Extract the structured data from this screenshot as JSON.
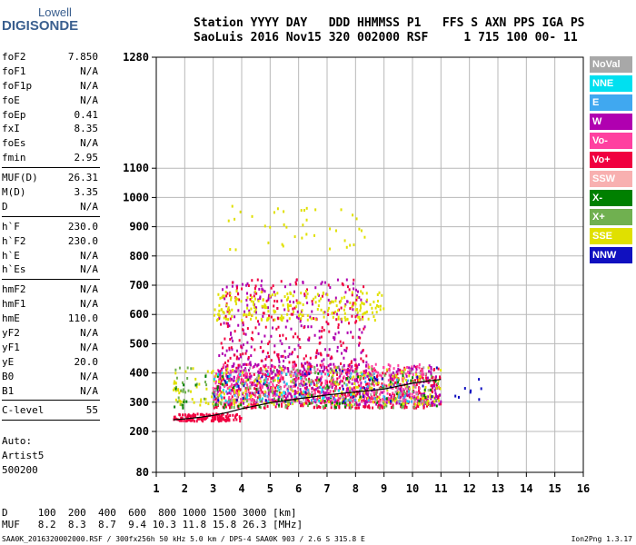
{
  "logo": {
    "line1": "Lowell",
    "line2": "DIGISONDE"
  },
  "header": {
    "labels": "Station YYYY DAY   DDD HHMMSS P1   FFS S AXN PPS IGA PS",
    "values": "SaoLuis 2016 Nov15 320 002000 RSF     1 715 100 00- 11"
  },
  "params": {
    "group1": [
      {
        "name": "foF2",
        "value": "7.850"
      },
      {
        "name": "foF1",
        "value": "N/A"
      },
      {
        "name": "foF1p",
        "value": "N/A"
      },
      {
        "name": "foE",
        "value": "N/A"
      },
      {
        "name": "foEp",
        "value": "0.41"
      },
      {
        "name": "fxI",
        "value": "8.35"
      },
      {
        "name": "foEs",
        "value": "N/A"
      },
      {
        "name": "fmin",
        "value": "2.95"
      }
    ],
    "group2": [
      {
        "name": "MUF(D)",
        "value": "26.31"
      },
      {
        "name": "M(D)",
        "value": "3.35"
      },
      {
        "name": "D",
        "value": "N/A"
      }
    ],
    "group3": [
      {
        "name": "h`F",
        "value": "230.0"
      },
      {
        "name": "h`F2",
        "value": "230.0"
      },
      {
        "name": "h`E",
        "value": "N/A"
      },
      {
        "name": "h`Es",
        "value": "N/A"
      }
    ],
    "group4": [
      {
        "name": "hmF2",
        "value": "N/A"
      },
      {
        "name": "hmF1",
        "value": "N/A"
      },
      {
        "name": "hmE",
        "value": "110.0"
      },
      {
        "name": "yF2",
        "value": "N/A"
      },
      {
        "name": "yF1",
        "value": "N/A"
      },
      {
        "name": "yE",
        "value": "20.0"
      },
      {
        "name": "B0",
        "value": "N/A"
      },
      {
        "name": "B1",
        "value": "N/A"
      }
    ],
    "group5": [
      {
        "name": "C-level",
        "value": "55"
      }
    ]
  },
  "auto": {
    "line1": "Auto:",
    "line2": "Artist5",
    "line3": "500200"
  },
  "footer": {
    "d_line": "D     100  200  400  600  800 1000 1500 3000 [km]",
    "muf_line": "MUF   8.2  8.3  8.7  9.4 10.3 11.8 15.8 26.3 [MHz]",
    "filename": "SAA0K_2016320002000.RSF / 300fx256h 50 kHz 5.0 km / DPS-4 SAA0K 903 / 2.6 S 315.8 E",
    "version": "Ion2Png 1.3.17"
  },
  "legend": [
    {
      "label": "NoVal",
      "color": "#a8a8a8"
    },
    {
      "label": "NNE",
      "color": "#00e0f0"
    },
    {
      "label": "E",
      "color": "#40a8f0"
    },
    {
      "label": "W",
      "color": "#b000b0"
    },
    {
      "label": "Vo-",
      "color": "#ff40a0"
    },
    {
      "label": "Vo+",
      "color": "#f00040"
    },
    {
      "label": "SSW",
      "color": "#f8b0b0"
    },
    {
      "label": "X-",
      "color": "#008000"
    },
    {
      "label": "X+",
      "color": "#70b050"
    },
    {
      "label": "SSE",
      "color": "#e0e000"
    },
    {
      "label": "NNW",
      "color": "#1010c0"
    }
  ],
  "chart_data": {
    "type": "scatter",
    "title": "",
    "xlabel": "",
    "ylabel": "",
    "xlim": [
      1,
      16
    ],
    "ylim": [
      80,
      1280
    ],
    "x_ticks": [
      1,
      2,
      3,
      4,
      5,
      6,
      7,
      8,
      9,
      10,
      11,
      12,
      13,
      14,
      15,
      16
    ],
    "y_ticks": [
      80,
      200,
      300,
      400,
      500,
      600,
      700,
      800,
      900,
      1000,
      1100,
      1280
    ],
    "grid": true,
    "trace": {
      "name": "",
      "x": [
        1.6,
        2.0,
        2.5,
        3.0,
        3.5,
        4.0,
        4.5,
        5.0,
        5.5,
        6.0,
        6.5,
        7.0,
        7.5,
        8.0,
        8.5,
        9.0,
        9.5,
        10.0,
        10.5,
        11.0
      ],
      "y": [
        240,
        243,
        248,
        255,
        265,
        278,
        288,
        298,
        305,
        312,
        318,
        325,
        330,
        335,
        340,
        345,
        355,
        365,
        372,
        378
      ]
    },
    "clusters": [
      {
        "color": "#f00040",
        "x_range": [
          1.6,
          4.0
        ],
        "y_range": [
          235,
          260
        ],
        "count": 140
      },
      {
        "color": "#f00040",
        "x_range": [
          3.0,
          11.0
        ],
        "y_range": [
          280,
          420
        ],
        "count": 600
      },
      {
        "color": "#ff40a0",
        "x_range": [
          3.0,
          10.5
        ],
        "y_range": [
          300,
          430
        ],
        "count": 450
      },
      {
        "color": "#b000b0",
        "x_range": [
          3.0,
          11.0
        ],
        "y_range": [
          290,
          430
        ],
        "count": 300
      },
      {
        "color": "#b000b0",
        "x_range": [
          3.2,
          8.4
        ],
        "y_range": [
          400,
          720
        ],
        "count": 250
      },
      {
        "color": "#f00040",
        "x_range": [
          3.2,
          8.4
        ],
        "y_range": [
          420,
          720
        ],
        "count": 200
      },
      {
        "color": "#e0e000",
        "x_range": [
          1.6,
          11.0
        ],
        "y_range": [
          290,
          420
        ],
        "count": 250
      },
      {
        "color": "#e0e000",
        "x_range": [
          3.0,
          9.0
        ],
        "y_range": [
          580,
          680
        ],
        "count": 220
      },
      {
        "color": "#e0e000",
        "x_range": [
          3.5,
          8.5
        ],
        "y_range": [
          820,
          970
        ],
        "count": 40
      },
      {
        "color": "#70b050",
        "x_range": [
          1.6,
          11.0
        ],
        "y_range": [
          280,
          420
        ],
        "count": 150
      },
      {
        "color": "#008000",
        "x_range": [
          1.6,
          11.0
        ],
        "y_range": [
          280,
          400
        ],
        "count": 70
      },
      {
        "color": "#40a8f0",
        "x_range": [
          3.0,
          10.0
        ],
        "y_range": [
          300,
          400
        ],
        "count": 60
      },
      {
        "color": "#00e0f0",
        "x_range": [
          3.0,
          10.0
        ],
        "y_range": [
          300,
          400
        ],
        "count": 40
      },
      {
        "color": "#1010c0",
        "x_range": [
          3.0,
          12.5
        ],
        "y_range": [
          300,
          420
        ],
        "count": 50
      },
      {
        "color": "#a8a8a8",
        "x_range": [
          3.0,
          11.0
        ],
        "y_range": [
          300,
          420
        ],
        "count": 60
      }
    ]
  }
}
